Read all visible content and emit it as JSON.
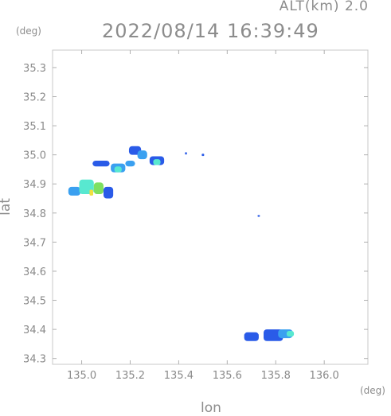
{
  "header": {
    "altitude_label": "ALT(km) 2.0",
    "timestamp": "2022/08/14 16:39:49"
  },
  "chart_data": {
    "type": "heatmap",
    "xlabel": "lon",
    "ylabel": "lat",
    "x_unit": "(deg)",
    "y_unit": "(deg)",
    "xlim": [
      134.88,
      136.18
    ],
    "ylim": [
      34.28,
      35.36
    ],
    "x_ticks": [
      135.0,
      135.2,
      135.4,
      135.6,
      135.8,
      136.0
    ],
    "x_tick_labels": [
      "135.0",
      "135.2",
      "135.4",
      "135.6",
      "135.8",
      "136.0"
    ],
    "y_ticks": [
      34.3,
      34.4,
      34.5,
      34.6,
      34.7,
      34.8,
      34.9,
      35.0,
      35.1,
      35.2,
      35.3
    ],
    "y_tick_labels": [
      "34.3",
      "34.4",
      "34.5",
      "34.6",
      "34.7",
      "34.8",
      "34.9",
      "35.0",
      "35.1",
      "35.2",
      "35.3"
    ],
    "grid": false,
    "colors": {
      "low": "#2a5be8",
      "mid": "#3aa0f0",
      "high": "#58e8d0",
      "peak": "#7ee060",
      "max": "#f0e040",
      "frame": "#c8c8c8"
    },
    "echo_cells": [
      {
        "lon": 134.97,
        "lat": 34.875,
        "w": 0.05,
        "h": 0.03,
        "level": "mid"
      },
      {
        "lon": 135.02,
        "lat": 34.89,
        "w": 0.06,
        "h": 0.05,
        "level": "high"
      },
      {
        "lon": 135.07,
        "lat": 34.885,
        "w": 0.04,
        "h": 0.04,
        "level": "peak"
      },
      {
        "lon": 135.04,
        "lat": 34.87,
        "w": 0.015,
        "h": 0.02,
        "level": "max"
      },
      {
        "lon": 135.11,
        "lat": 34.87,
        "w": 0.04,
        "h": 0.04,
        "level": "low"
      },
      {
        "lon": 135.08,
        "lat": 34.97,
        "w": 0.07,
        "h": 0.02,
        "level": "low"
      },
      {
        "lon": 135.15,
        "lat": 34.955,
        "w": 0.06,
        "h": 0.03,
        "level": "mid"
      },
      {
        "lon": 135.15,
        "lat": 34.95,
        "w": 0.03,
        "h": 0.02,
        "level": "high"
      },
      {
        "lon": 135.2,
        "lat": 34.97,
        "w": 0.04,
        "h": 0.02,
        "level": "mid"
      },
      {
        "lon": 135.22,
        "lat": 35.015,
        "w": 0.05,
        "h": 0.03,
        "level": "low"
      },
      {
        "lon": 135.25,
        "lat": 35.0,
        "w": 0.04,
        "h": 0.03,
        "level": "mid"
      },
      {
        "lon": 135.31,
        "lat": 34.98,
        "w": 0.06,
        "h": 0.03,
        "level": "low"
      },
      {
        "lon": 135.31,
        "lat": 34.975,
        "w": 0.03,
        "h": 0.02,
        "level": "high"
      },
      {
        "lon": 135.43,
        "lat": 35.005,
        "w": 0.008,
        "h": 0.008,
        "level": "low"
      },
      {
        "lon": 135.5,
        "lat": 35.0,
        "w": 0.01,
        "h": 0.008,
        "level": "low"
      },
      {
        "lon": 135.73,
        "lat": 34.79,
        "w": 0.01,
        "h": 0.006,
        "level": "low"
      },
      {
        "lon": 135.7,
        "lat": 34.375,
        "w": 0.06,
        "h": 0.03,
        "level": "low"
      },
      {
        "lon": 135.79,
        "lat": 34.38,
        "w": 0.08,
        "h": 0.04,
        "level": "low"
      },
      {
        "lon": 135.84,
        "lat": 34.385,
        "w": 0.06,
        "h": 0.03,
        "level": "mid"
      },
      {
        "lon": 135.86,
        "lat": 34.385,
        "w": 0.03,
        "h": 0.02,
        "level": "high"
      }
    ]
  }
}
